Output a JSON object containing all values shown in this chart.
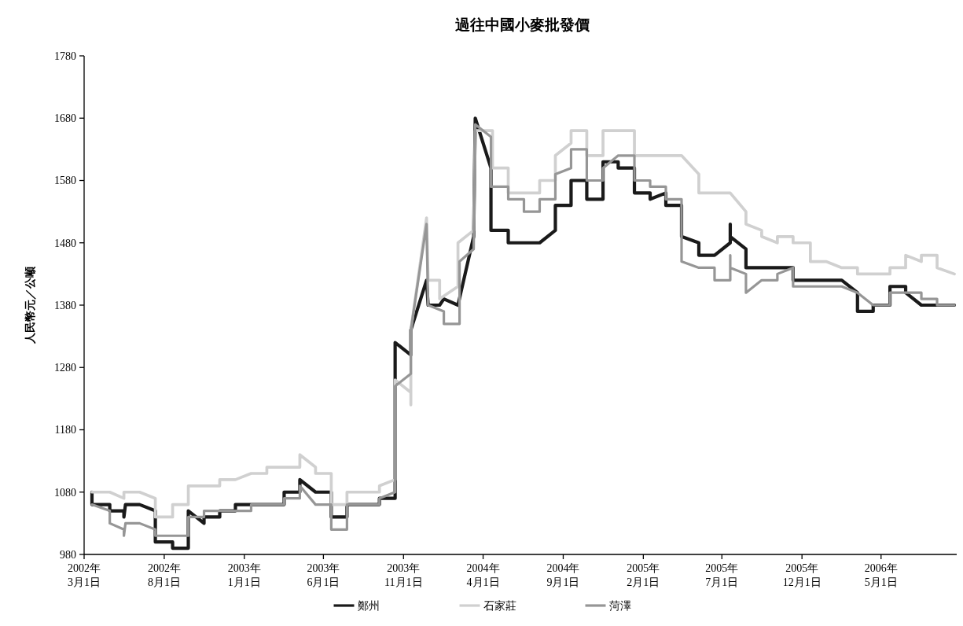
{
  "chart_data": {
    "type": "line",
    "title": "過往中國小麥批發價",
    "ylabel": "人民幣元／公噸",
    "xlim": [
      "2002-03-01",
      "2006-09-30"
    ],
    "xticks": [
      {
        "value": "2002-03-01",
        "label": "2002年\n3月1日"
      },
      {
        "value": "2002-08-01",
        "label": "2002年\n8月1日"
      },
      {
        "value": "2003-01-01",
        "label": "2003年\n1月1日"
      },
      {
        "value": "2003-06-01",
        "label": "2003年\n6月1日"
      },
      {
        "value": "2003-11-01",
        "label": "2003年\n11月1日"
      },
      {
        "value": "2004-04-01",
        "label": "2004年\n4月1日"
      },
      {
        "value": "2004-09-01",
        "label": "2004年\n9月1日"
      },
      {
        "value": "2005-02-01",
        "label": "2005年\n2月1日"
      },
      {
        "value": "2005-07-01",
        "label": "2005年\n7月1日"
      },
      {
        "value": "2005-12-01",
        "label": "2005年\n12月1日"
      },
      {
        "value": "2006-05-01",
        "label": "2006年\n5月1日"
      }
    ],
    "ylim": [
      980,
      1780
    ],
    "yticks": [
      980,
      1080,
      1180,
      1280,
      1380,
      1480,
      1580,
      1680,
      1780
    ],
    "grid": false,
    "legend": "bottom",
    "marker": "none",
    "line_style": "solid",
    "series": [
      {
        "name": "鄭州",
        "color": "#1a1a1a",
        "x": [
          "2002-03-16",
          "2002-03-16",
          "2002-04-19",
          "2002-04-19",
          "2002-05-16",
          "2002-05-16",
          "2002-05-19",
          "2002-06-15",
          "2002-07-15",
          "2002-07-15",
          "2002-08-17",
          "2002-08-17",
          "2002-09-16",
          "2002-09-16",
          "2002-10-16",
          "2002-10-16",
          "2002-11-15",
          "2002-11-15",
          "2002-12-15",
          "2002-12-15",
          "2003-03-18",
          "2003-03-18",
          "2003-04-17",
          "2003-04-17",
          "2003-05-17",
          "2003-06-16",
          "2003-06-16",
          "2003-07-16",
          "2003-07-16",
          "2003-09-16",
          "2003-09-16",
          "2003-10-16",
          "2003-10-16",
          "2003-11-15",
          "2003-11-15",
          "2003-12-15",
          "2003-12-18",
          "2004-01-09",
          "2004-01-17",
          "2004-02-13",
          "2004-03-14",
          "2004-03-17",
          "2004-04-16",
          "2004-04-16",
          "2004-05-19",
          "2004-05-19",
          "2004-07-18",
          "2004-08-17",
          "2004-08-17",
          "2004-09-16",
          "2004-09-16",
          "2004-10-16",
          "2004-10-16",
          "2004-11-16",
          "2004-11-16",
          "2004-12-15",
          "2004-12-15",
          "2005-01-15",
          "2005-01-15",
          "2005-02-14",
          "2005-02-14",
          "2005-03-16",
          "2005-03-16",
          "2005-04-15",
          "2005-04-15",
          "2005-05-18",
          "2005-05-18",
          "2005-06-17",
          "2005-07-17",
          "2005-07-17",
          "2005-07-17",
          "2005-08-16",
          "2005-08-16",
          "2005-11-14",
          "2005-11-14",
          "2006-02-15",
          "2006-03-17",
          "2006-03-17",
          "2006-04-16",
          "2006-04-16",
          "2006-05-18",
          "2006-05-18",
          "2006-06-17",
          "2006-06-17",
          "2006-07-17",
          "2006-09-18"
        ],
        "values": [
          1080,
          1060,
          1060,
          1050,
          1050,
          1040,
          1060,
          1060,
          1050,
          1000,
          1000,
          990,
          990,
          1050,
          1030,
          1040,
          1040,
          1050,
          1050,
          1060,
          1060,
          1080,
          1080,
          1100,
          1080,
          1080,
          1040,
          1040,
          1060,
          1060,
          1070,
          1070,
          1320,
          1300,
          1340,
          1420,
          1380,
          1380,
          1390,
          1380,
          1490,
          1680,
          1600,
          1500,
          1500,
          1480,
          1480,
          1500,
          1540,
          1540,
          1580,
          1580,
          1550,
          1550,
          1610,
          1610,
          1600,
          1600,
          1560,
          1560,
          1550,
          1560,
          1540,
          1540,
          1490,
          1480,
          1460,
          1460,
          1480,
          1510,
          1490,
          1470,
          1440,
          1440,
          1420,
          1420,
          1400,
          1370,
          1370,
          1380,
          1380,
          1410,
          1410,
          1400,
          1380,
          1380
        ]
      },
      {
        "name": "石家莊",
        "color": "#d0d0d0",
        "x": [
          "2002-03-16",
          "2002-04-19",
          "2002-05-16",
          "2002-05-16",
          "2002-06-15",
          "2002-07-15",
          "2002-07-15",
          "2002-08-17",
          "2002-08-17",
          "2002-09-16",
          "2002-09-16",
          "2002-11-15",
          "2002-11-15",
          "2002-12-15",
          "2003-01-14",
          "2003-02-13",
          "2003-02-13",
          "2003-04-17",
          "2003-04-17",
          "2003-05-17",
          "2003-05-17",
          "2003-06-16",
          "2003-06-16",
          "2003-07-16",
          "2003-07-16",
          "2003-09-16",
          "2003-09-16",
          "2003-10-16",
          "2003-10-16",
          "2003-11-15",
          "2003-11-15",
          "2003-11-15",
          "2003-12-15",
          "2003-12-18",
          "2004-01-09",
          "2004-01-09",
          "2004-02-13",
          "2004-02-13",
          "2004-03-14",
          "2004-03-17",
          "2004-04-19",
          "2004-04-19",
          "2004-05-19",
          "2004-05-19",
          "2004-07-18",
          "2004-07-18",
          "2004-08-17",
          "2004-08-17",
          "2004-09-16",
          "2004-09-16",
          "2004-10-16",
          "2004-10-16",
          "2004-11-16",
          "2004-11-16",
          "2005-01-15",
          "2005-01-15",
          "2005-04-15",
          "2005-05-18",
          "2005-05-18",
          "2005-07-17",
          "2005-08-16",
          "2005-08-16",
          "2005-09-15",
          "2005-09-15",
          "2005-10-15",
          "2005-10-15",
          "2005-11-14",
          "2005-11-14",
          "2005-12-17",
          "2005-12-17",
          "2006-01-16",
          "2006-02-15",
          "2006-03-17",
          "2006-03-17",
          "2006-05-18",
          "2006-05-18",
          "2006-06-17",
          "2006-06-17",
          "2006-07-17",
          "2006-07-17",
          "2006-08-16",
          "2006-08-16",
          "2006-09-18"
        ],
        "values": [
          1080,
          1080,
          1070,
          1080,
          1080,
          1070,
          1040,
          1040,
          1060,
          1060,
          1090,
          1090,
          1100,
          1100,
          1110,
          1110,
          1120,
          1120,
          1140,
          1120,
          1110,
          1110,
          1060,
          1060,
          1080,
          1080,
          1090,
          1100,
          1260,
          1240,
          1220,
          1340,
          1520,
          1420,
          1420,
          1390,
          1410,
          1480,
          1500,
          1660,
          1660,
          1600,
          1600,
          1560,
          1560,
          1580,
          1580,
          1620,
          1640,
          1660,
          1660,
          1620,
          1620,
          1660,
          1660,
          1620,
          1620,
          1590,
          1560,
          1560,
          1530,
          1510,
          1500,
          1490,
          1480,
          1490,
          1490,
          1480,
          1480,
          1450,
          1450,
          1440,
          1440,
          1430,
          1430,
          1440,
          1440,
          1460,
          1450,
          1460,
          1460,
          1440,
          1430
        ]
      },
      {
        "name": "菏澤",
        "color": "#969696",
        "x": [
          "2002-03-16",
          "2002-04-19",
          "2002-04-19",
          "2002-05-16",
          "2002-05-16",
          "2002-05-19",
          "2002-06-15",
          "2002-07-15",
          "2002-07-15",
          "2002-09-16",
          "2002-09-16",
          "2002-10-16",
          "2002-10-16",
          "2003-01-14",
          "2003-01-14",
          "2003-03-18",
          "2003-03-18",
          "2003-04-17",
          "2003-04-17",
          "2003-05-17",
          "2003-06-16",
          "2003-06-16",
          "2003-07-16",
          "2003-07-16",
          "2003-09-16",
          "2003-09-16",
          "2003-10-16",
          "2003-10-16",
          "2003-11-15",
          "2003-11-15",
          "2003-12-15",
          "2003-12-18",
          "2004-01-17",
          "2004-01-17",
          "2004-02-16",
          "2004-02-16",
          "2004-03-14",
          "2004-03-17",
          "2004-04-16",
          "2004-04-16",
          "2004-05-19",
          "2004-05-19",
          "2004-06-18",
          "2004-06-18",
          "2004-07-18",
          "2004-07-18",
          "2004-08-17",
          "2004-08-17",
          "2004-09-16",
          "2004-09-16",
          "2004-10-16",
          "2004-10-16",
          "2004-11-16",
          "2004-11-16",
          "2004-12-15",
          "2005-01-15",
          "2005-01-15",
          "2005-02-14",
          "2005-02-14",
          "2005-03-16",
          "2005-03-16",
          "2005-04-15",
          "2005-04-15",
          "2005-05-18",
          "2005-06-17",
          "2005-06-17",
          "2005-07-17",
          "2005-07-17",
          "2005-07-17",
          "2005-08-16",
          "2005-08-16",
          "2005-09-15",
          "2005-10-15",
          "2005-10-15",
          "2005-11-14",
          "2005-11-14",
          "2006-02-15",
          "2006-03-17",
          "2006-04-16",
          "2006-05-18",
          "2006-05-18",
          "2006-07-17",
          "2006-07-17",
          "2006-08-16",
          "2006-08-16",
          "2006-09-18"
        ],
        "values": [
          1060,
          1050,
          1030,
          1020,
          1010,
          1030,
          1030,
          1020,
          1010,
          1010,
          1040,
          1040,
          1050,
          1050,
          1060,
          1060,
          1070,
          1070,
          1090,
          1060,
          1060,
          1020,
          1020,
          1060,
          1060,
          1070,
          1080,
          1250,
          1270,
          1340,
          1510,
          1380,
          1370,
          1350,
          1350,
          1450,
          1470,
          1670,
          1650,
          1570,
          1570,
          1550,
          1550,
          1530,
          1530,
          1550,
          1550,
          1590,
          1600,
          1630,
          1630,
          1580,
          1580,
          1600,
          1620,
          1620,
          1580,
          1580,
          1570,
          1570,
          1550,
          1550,
          1450,
          1440,
          1440,
          1420,
          1420,
          1460,
          1440,
          1430,
          1400,
          1420,
          1420,
          1430,
          1440,
          1410,
          1410,
          1400,
          1380,
          1380,
          1400,
          1400,
          1390,
          1390,
          1380,
          1380
        ]
      }
    ]
  }
}
